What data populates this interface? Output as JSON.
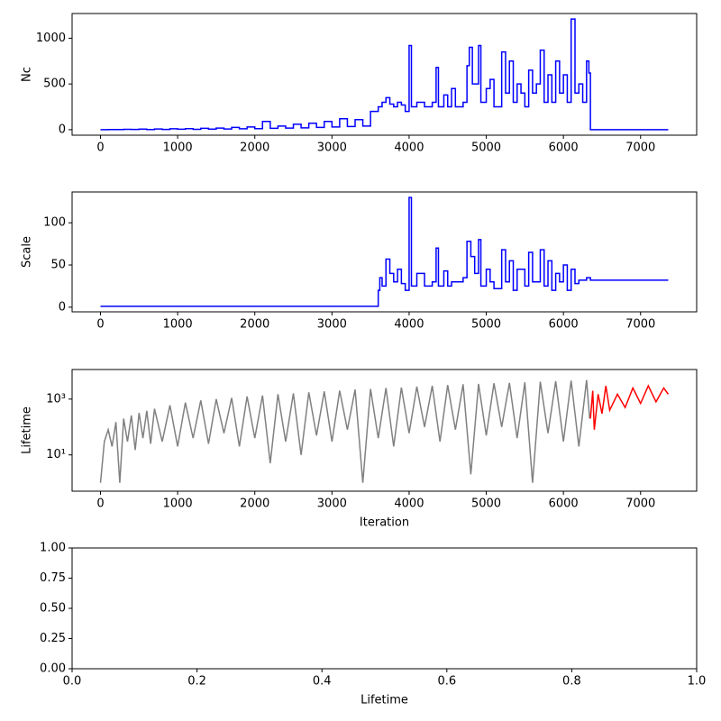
{
  "chart_data": [
    {
      "type": "line",
      "ylabel": "Nc",
      "xlim": [
        -368,
        7727
      ],
      "ylim": [
        -60,
        1270
      ],
      "xticks": [
        0,
        1000,
        2000,
        3000,
        4000,
        5000,
        6000,
        7000
      ],
      "yticks": [
        0,
        500,
        1000
      ],
      "series": [
        {
          "color": "#0000ff",
          "step": true,
          "x": [
            0,
            100,
            200,
            300,
            400,
            500,
            600,
            700,
            800,
            900,
            1000,
            1100,
            1200,
            1300,
            1400,
            1500,
            1600,
            1700,
            1800,
            1900,
            2000,
            2100,
            2200,
            2300,
            2400,
            2500,
            2600,
            2700,
            2800,
            2900,
            3000,
            3100,
            3200,
            3300,
            3400,
            3500,
            3600,
            3650,
            3700,
            3750,
            3800,
            3850,
            3900,
            3950,
            4000,
            4030,
            4100,
            4200,
            4300,
            4350,
            4380,
            4450,
            4500,
            4550,
            4600,
            4700,
            4750,
            4780,
            4820,
            4900,
            4930,
            5000,
            5050,
            5100,
            5200,
            5250,
            5300,
            5350,
            5400,
            5450,
            5500,
            5550,
            5600,
            5650,
            5700,
            5750,
            5800,
            5850,
            5900,
            5950,
            6000,
            6050,
            6100,
            6150,
            6200,
            6250,
            6300,
            6330,
            6350,
            7359
          ],
          "values": [
            0,
            2,
            1,
            4,
            3,
            6,
            2,
            8,
            3,
            10,
            5,
            12,
            4,
            15,
            6,
            18,
            8,
            25,
            10,
            30,
            12,
            90,
            15,
            40,
            18,
            60,
            20,
            70,
            25,
            90,
            30,
            120,
            35,
            110,
            40,
            200,
            250,
            300,
            350,
            280,
            250,
            300,
            270,
            200,
            920,
            250,
            300,
            250,
            300,
            680,
            250,
            380,
            250,
            450,
            250,
            300,
            700,
            900,
            500,
            920,
            300,
            450,
            550,
            250,
            850,
            400,
            750,
            300,
            500,
            400,
            250,
            650,
            400,
            500,
            870,
            300,
            600,
            300,
            750,
            400,
            600,
            300,
            1210,
            400,
            500,
            300,
            750,
            620,
            0,
            0
          ]
        }
      ]
    },
    {
      "type": "line",
      "ylabel": "Scale",
      "xlim": [
        -368,
        7727
      ],
      "ylim": [
        -5.5,
        136.5
      ],
      "xticks": [
        0,
        1000,
        2000,
        3000,
        4000,
        5000,
        6000,
        7000
      ],
      "yticks": [
        0,
        50,
        100
      ],
      "series": [
        {
          "color": "#0000ff",
          "step": true,
          "x": [
            0,
            3590,
            3600,
            3620,
            3650,
            3700,
            3750,
            3800,
            3850,
            3900,
            3950,
            4000,
            4030,
            4100,
            4200,
            4300,
            4350,
            4380,
            4450,
            4500,
            4550,
            4700,
            4750,
            4800,
            4850,
            4900,
            4930,
            5000,
            5050,
            5100,
            5200,
            5250,
            5300,
            5350,
            5400,
            5500,
            5550,
            5600,
            5700,
            5750,
            5800,
            5850,
            5900,
            5950,
            6000,
            6050,
            6100,
            6150,
            6200,
            6300,
            6350,
            7359
          ],
          "values": [
            1,
            1,
            20,
            35,
            25,
            57,
            40,
            30,
            45,
            28,
            20,
            130,
            25,
            40,
            25,
            30,
            70,
            25,
            43,
            25,
            30,
            35,
            78,
            60,
            40,
            80,
            25,
            45,
            30,
            22,
            68,
            30,
            55,
            20,
            45,
            25,
            65,
            30,
            68,
            25,
            55,
            20,
            40,
            30,
            50,
            20,
            45,
            28,
            32,
            35,
            32,
            32
          ]
        }
      ]
    },
    {
      "type": "line",
      "ylabel": "Lifetime",
      "xlabel": "Iteration",
      "yscale": "log",
      "xlim": [
        -368,
        7727
      ],
      "ylim": [
        0.5,
        11500
      ],
      "xticks": [
        0,
        1000,
        2000,
        3000,
        4000,
        5000,
        6000,
        7000
      ],
      "yticks": [
        {
          "value": 10,
          "label": "10¹"
        },
        {
          "value": 1000,
          "label": "10³"
        }
      ],
      "series": [
        {
          "color": "#808080",
          "x": [
            0,
            50,
            100,
            150,
            200,
            250,
            300,
            350,
            400,
            450,
            500,
            550,
            600,
            650,
            700,
            800,
            900,
            1000,
            1100,
            1200,
            1300,
            1400,
            1500,
            1600,
            1700,
            1800,
            1900,
            2000,
            2100,
            2200,
            2300,
            2400,
            2500,
            2600,
            2700,
            2800,
            2900,
            3000,
            3100,
            3200,
            3300,
            3400,
            3500,
            3600,
            3700,
            3800,
            3900,
            4000,
            4100,
            4200,
            4300,
            4400,
            4500,
            4600,
            4700,
            4800,
            4900,
            5000,
            5100,
            5200,
            5300,
            5400,
            5500,
            5600,
            5700,
            5800,
            5900,
            6000,
            6100,
            6200,
            6300,
            6340
          ],
          "values": [
            1,
            30,
            80,
            20,
            150,
            1,
            200,
            30,
            260,
            15,
            320,
            40,
            380,
            25,
            450,
            30,
            600,
            20,
            750,
            40,
            900,
            25,
            1000,
            60,
            1100,
            20,
            1250,
            40,
            1350,
            5,
            1500,
            30,
            1600,
            10,
            1750,
            50,
            1900,
            30,
            2000,
            80,
            2200,
            1,
            2300,
            40,
            2500,
            20,
            2600,
            60,
            2800,
            100,
            3000,
            30,
            3200,
            80,
            3400,
            2,
            3500,
            50,
            3700,
            100,
            3800,
            40,
            4000,
            1,
            4200,
            60,
            4400,
            30,
            4600,
            20,
            4800,
            200
          ]
        },
        {
          "color": "#ff0000",
          "x": [
            6350,
            6380,
            6400,
            6450,
            6500,
            6550,
            6600,
            6700,
            6800,
            6900,
            7000,
            7100,
            7200,
            7300,
            7359
          ],
          "values": [
            200,
            2000,
            80,
            1500,
            300,
            3000,
            400,
            1500,
            500,
            2500,
            700,
            3000,
            800,
            2500,
            1500
          ]
        }
      ]
    },
    {
      "type": "line",
      "xlabel": "Lifetime",
      "xlim": [
        0,
        1
      ],
      "ylim": [
        0,
        1
      ],
      "xticks": [
        {
          "value": 0,
          "label": "0.0"
        },
        0.2,
        0.4,
        0.6,
        0.8,
        {
          "value": 1,
          "label": "1.0"
        }
      ],
      "yticks": [
        {
          "value": 0,
          "label": "0.00"
        },
        {
          "value": 0.25,
          "label": "0.25"
        },
        {
          "value": 0.5,
          "label": "0.50"
        },
        {
          "value": 0.75,
          "label": "0.75"
        },
        {
          "value": 1,
          "label": "1.00"
        }
      ],
      "series": []
    }
  ]
}
